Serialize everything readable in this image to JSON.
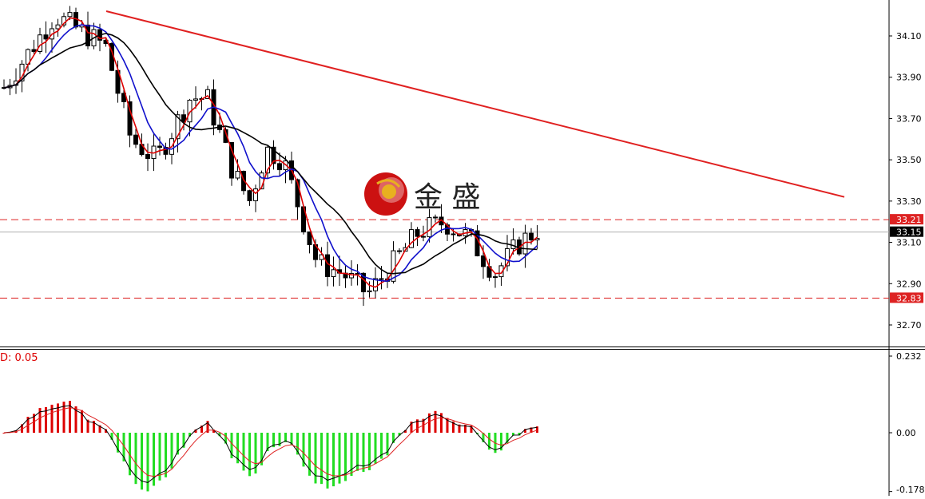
{
  "colors": {
    "background": "#ffffff",
    "axis": "#000000",
    "bull_body": "#ffffff",
    "candle_line": "#000000",
    "bear_body": "#000000",
    "ma_fast": "#dd0000",
    "ma_mid": "#1010cc",
    "ma_slow": "#000000",
    "trendline": "#e02020",
    "level_line": "#dd2222",
    "current_price_line": "#b0b0b0",
    "hist_positive": "#dd0000",
    "hist_negative": "#22dd22",
    "macd_line": "#000000",
    "signal_line": "#dd2222",
    "logo_red": "#cc1111",
    "logo_gold": "#e8b020"
  },
  "logo": {
    "text": "金 盛",
    "icon": "logo-globe-icon"
  },
  "price_panel": {
    "y_ticks": [
      "34.10",
      "33.90",
      "33.70",
      "33.50",
      "33.30",
      "33.10",
      "32.90",
      "32.70"
    ],
    "level_labels": {
      "resistance": "33.21",
      "support": "32.83"
    },
    "current_price_label": "33.15"
  },
  "indicator_panel": {
    "label": "D: 0.05",
    "y_ticks": [
      "0.232",
      "0.00",
      "-0.178"
    ]
  },
  "chart_data": {
    "type": "candlestick",
    "title": "",
    "xlabel": "",
    "ylabel": "",
    "ylim": [
      32.6,
      34.25
    ],
    "grid": false,
    "candle_count": 90,
    "approx_path": [
      [
        0,
        33.85
      ],
      [
        12,
        34.2
      ],
      [
        24,
        34.05
      ],
      [
        30,
        33.6
      ],
      [
        36,
        33.5
      ],
      [
        44,
        33.8
      ],
      [
        48,
        33.8
      ],
      [
        54,
        33.45
      ],
      [
        58,
        33.3
      ],
      [
        62,
        33.55
      ],
      [
        66,
        33.5
      ],
      [
        74,
        33.0
      ],
      [
        80,
        32.95
      ],
      [
        86,
        32.85
      ],
      [
        92,
        33.0
      ],
      [
        98,
        33.15
      ],
      [
        104,
        33.2
      ],
      [
        110,
        33.12
      ],
      [
        116,
        32.95
      ],
      [
        122,
        33.1
      ],
      [
        126,
        33.16
      ]
    ],
    "series": [
      {
        "kind": "moving_average",
        "values_desc": "fast MA, red"
      },
      {
        "kind": "moving_average",
        "values_desc": "mid MA, blue"
      },
      {
        "kind": "moving_average",
        "values_desc": "slow MA, black"
      }
    ],
    "trendline": {
      "from": [
        33.0,
        34.22
      ],
      "to": [
        126.0,
        33.32
      ]
    },
    "levels": [
      33.21,
      32.83
    ],
    "last_price": 33.15,
    "indicator": {
      "type": "macd_histogram",
      "ylim": [
        -0.178,
        0.232
      ],
      "last_value": 0.05
    }
  }
}
